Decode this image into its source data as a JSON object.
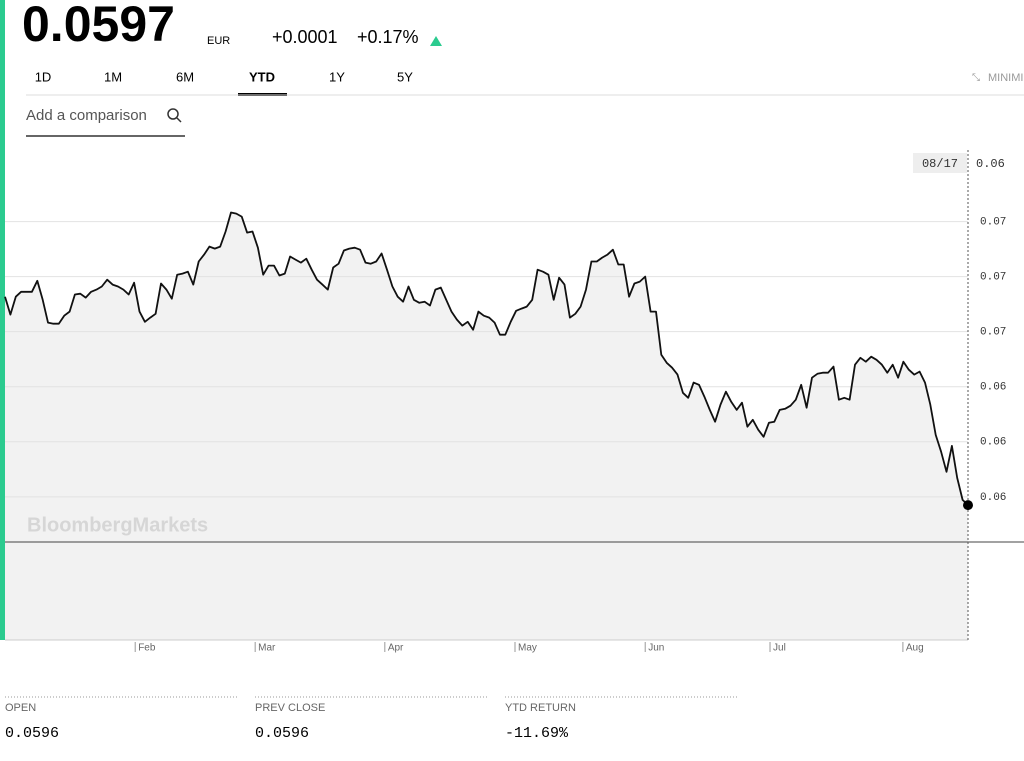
{
  "header": {
    "price": "0.0597",
    "currency": "EUR",
    "change": "+0.0001",
    "change_pct": "+0.17%"
  },
  "tabs": [
    "1D",
    "1M",
    "6M",
    "YTD",
    "1Y",
    "5Y"
  ],
  "active_tab": "YTD",
  "minimize": "MINIMI",
  "search_placeholder": "Add a comparison",
  "chart_data": {
    "type": "line",
    "color": "#111111",
    "watermark": "BloombergMarkets",
    "hover_date": "08/17",
    "hover_value": "0.06",
    "values": [
      0.06727,
      0.06662,
      0.06727,
      0.06745,
      0.06745,
      0.06745,
      0.06785,
      0.06716,
      0.06633,
      0.06629,
      0.06629,
      0.06658,
      0.06673,
      0.06735,
      0.06738,
      0.06724,
      0.06745,
      0.06753,
      0.06764,
      0.06789,
      0.06771,
      0.06764,
      0.06753,
      0.06735,
      0.06778,
      0.06673,
      0.06636,
      0.06651,
      0.06665,
      0.06775,
      0.06753,
      0.0672,
      0.06807,
      0.06811,
      0.06818,
      0.06771,
      0.06855,
      0.0688,
      0.06909,
      0.06902,
      0.06909,
      0.06964,
      0.07033,
      0.07029,
      0.07018,
      0.0696,
      0.06964,
      0.06905,
      0.06807,
      0.0684,
      0.0684,
      0.06804,
      0.06811,
      0.06873,
      0.06862,
      0.06851,
      0.06865,
      0.06825,
      0.06789,
      0.06771,
      0.06753,
      0.06833,
      0.06847,
      0.06895,
      0.06902,
      0.06905,
      0.06898,
      0.06851,
      0.06847,
      0.06855,
      0.06884,
      0.06825,
      0.06764,
      0.06727,
      0.06709,
      0.06764,
      0.06716,
      0.06705,
      0.06709,
      0.06695,
      0.06753,
      0.0676,
      0.06716,
      0.06673,
      0.06644,
      0.06622,
      0.06636,
      0.06607,
      0.06673,
      0.06658,
      0.06651,
      0.06633,
      0.06589,
      0.06589,
      0.06636,
      0.06676,
      0.06684,
      0.06691,
      0.06716,
      0.06825,
      0.06818,
      0.06807,
      0.06716,
      0.06796,
      0.06771,
      0.06651,
      0.06665,
      0.06691,
      0.06753,
      0.06855,
      0.06855,
      0.06869,
      0.0688,
      0.06898,
      0.06844,
      0.06844,
      0.06727,
      0.06775,
      0.06782,
      0.068,
      0.06673,
      0.06673,
      0.06516,
      0.06487,
      0.06469,
      0.06444,
      0.06378,
      0.0636,
      0.06415,
      0.06407,
      0.06364,
      0.06316,
      0.06273,
      0.06335,
      0.06382,
      0.06345,
      0.06316,
      0.06342,
      0.06255,
      0.0628,
      0.06244,
      0.06218,
      0.06269,
      0.06273,
      0.06316,
      0.0632,
      0.06331,
      0.06353,
      0.06407,
      0.06324,
      0.06433,
      0.06447,
      0.06451,
      0.06451,
      0.06473,
      0.06353,
      0.0636,
      0.06353,
      0.0648,
      0.06505,
      0.06491,
      0.06509,
      0.06498,
      0.0648,
      0.06451,
      0.0648,
      0.06433,
      0.06491,
      0.06462,
      0.06444,
      0.06455,
      0.06415,
      0.06335,
      0.06225,
      0.06164,
      0.06091,
      0.06185,
      0.06069,
      0.05989,
      0.0597
    ],
    "xlim": [
      0,
      179
    ],
    "xticks": [
      {
        "value": 24.2,
        "label": "Feb"
      },
      {
        "value": 46.5,
        "label": "Mar"
      },
      {
        "value": 70.6,
        "label": "Apr"
      },
      {
        "value": 94.8,
        "label": "May"
      },
      {
        "value": 119,
        "label": "Jun"
      },
      {
        "value": 142.2,
        "label": "Jul"
      },
      {
        "value": 166.9,
        "label": "Aug"
      }
    ],
    "ylim": [
      0.0548,
      0.0726
    ],
    "yticks": [
      {
        "value": 0.06,
        "label": "0.06"
      },
      {
        "value": 0.062,
        "label": "0.06"
      },
      {
        "value": 0.064,
        "label": "0.06"
      },
      {
        "value": 0.066,
        "label": "0.07"
      },
      {
        "value": 0.068,
        "label": "0.07"
      },
      {
        "value": 0.07,
        "label": "0.07"
      }
    ],
    "grid": true
  },
  "stats": [
    {
      "label": "OPEN",
      "value": "0.0596"
    },
    {
      "label": "PREV CLOSE",
      "value": "0.0596"
    },
    {
      "label": "YTD RETURN",
      "value": "-11.69%"
    }
  ]
}
